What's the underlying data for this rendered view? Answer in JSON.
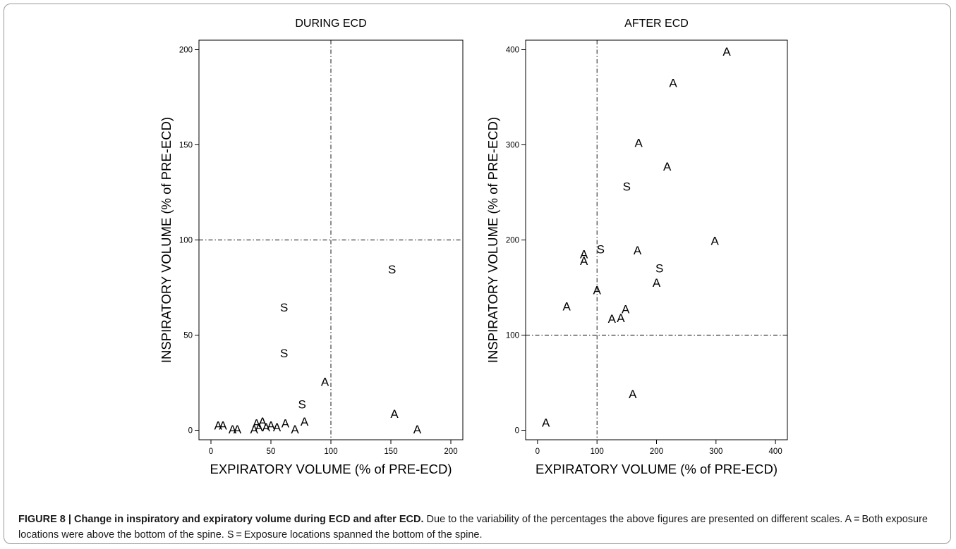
{
  "chart_data": [
    {
      "type": "scatter",
      "title": "DURING ECD",
      "xlabel": "EXPIRATORY VOLUME (% of PRE-ECD)",
      "ylabel": "INSPIRATORY VOLUME (% of PRE-ECD)",
      "xlim": [
        -10,
        210
      ],
      "ylim": [
        -5,
        205
      ],
      "xticks": [
        0,
        50,
        100,
        150,
        200
      ],
      "yticks": [
        0,
        50,
        100,
        150,
        200
      ],
      "reference_lines": {
        "x": 100,
        "y": 100,
        "style": "dash-dot"
      },
      "grid": false,
      "series": [
        {
          "name": "A",
          "marker": "A",
          "points": [
            [
              6,
              3
            ],
            [
              10,
              3
            ],
            [
              18,
              1
            ],
            [
              22,
              1
            ],
            [
              36,
              1
            ],
            [
              38,
              4
            ],
            [
              40,
              2
            ],
            [
              43,
              5
            ],
            [
              46,
              2
            ],
            [
              50,
              3
            ],
            [
              55,
              2
            ],
            [
              62,
              4
            ],
            [
              70,
              1
            ],
            [
              78,
              5
            ],
            [
              95,
              26
            ],
            [
              153,
              9
            ],
            [
              172,
              1
            ]
          ]
        },
        {
          "name": "S",
          "marker": "S",
          "points": [
            [
              61,
              65
            ],
            [
              61,
              41
            ],
            [
              76,
              14
            ],
            [
              151,
              85
            ]
          ]
        }
      ]
    },
    {
      "type": "scatter",
      "title": "AFTER ECD",
      "xlabel": "EXPIRATORY VOLUME (% of PRE-ECD)",
      "ylabel": "INSPIRATORY VOLUME (% of PRE-ECD)",
      "xlim": [
        -20,
        420
      ],
      "ylim": [
        -10,
        410
      ],
      "xticks": [
        0,
        100,
        200,
        300,
        400
      ],
      "yticks": [
        0,
        100,
        200,
        300,
        400
      ],
      "reference_lines": {
        "x": 100,
        "y": 100,
        "style": "dash-dot"
      },
      "grid": false,
      "series": [
        {
          "name": "A",
          "marker": "A",
          "points": [
            [
              14,
              9
            ],
            [
              49,
              131
            ],
            [
              78,
              186
            ],
            [
              78,
              179
            ],
            [
              100,
              148
            ],
            [
              125,
              118
            ],
            [
              140,
              119
            ],
            [
              148,
              128
            ],
            [
              160,
              39
            ],
            [
              168,
              190
            ],
            [
              170,
              303
            ],
            [
              200,
              156
            ],
            [
              218,
              278
            ],
            [
              228,
              366
            ],
            [
              298,
              200
            ],
            [
              318,
              399
            ]
          ]
        },
        {
          "name": "S",
          "marker": "S",
          "points": [
            [
              106,
              191
            ],
            [
              150,
              257
            ],
            [
              205,
              171
            ]
          ]
        }
      ]
    }
  ],
  "caption": {
    "bold": "FIGURE 8 | Change in inspiratory and expiratory volume during ECD and after ECD.",
    "text": " Due to the variability of the percentages the above figures are presented on different scales. A = Both exposure locations were above the bottom of the spine. S = Exposure locations spanned the bottom of the spine."
  }
}
